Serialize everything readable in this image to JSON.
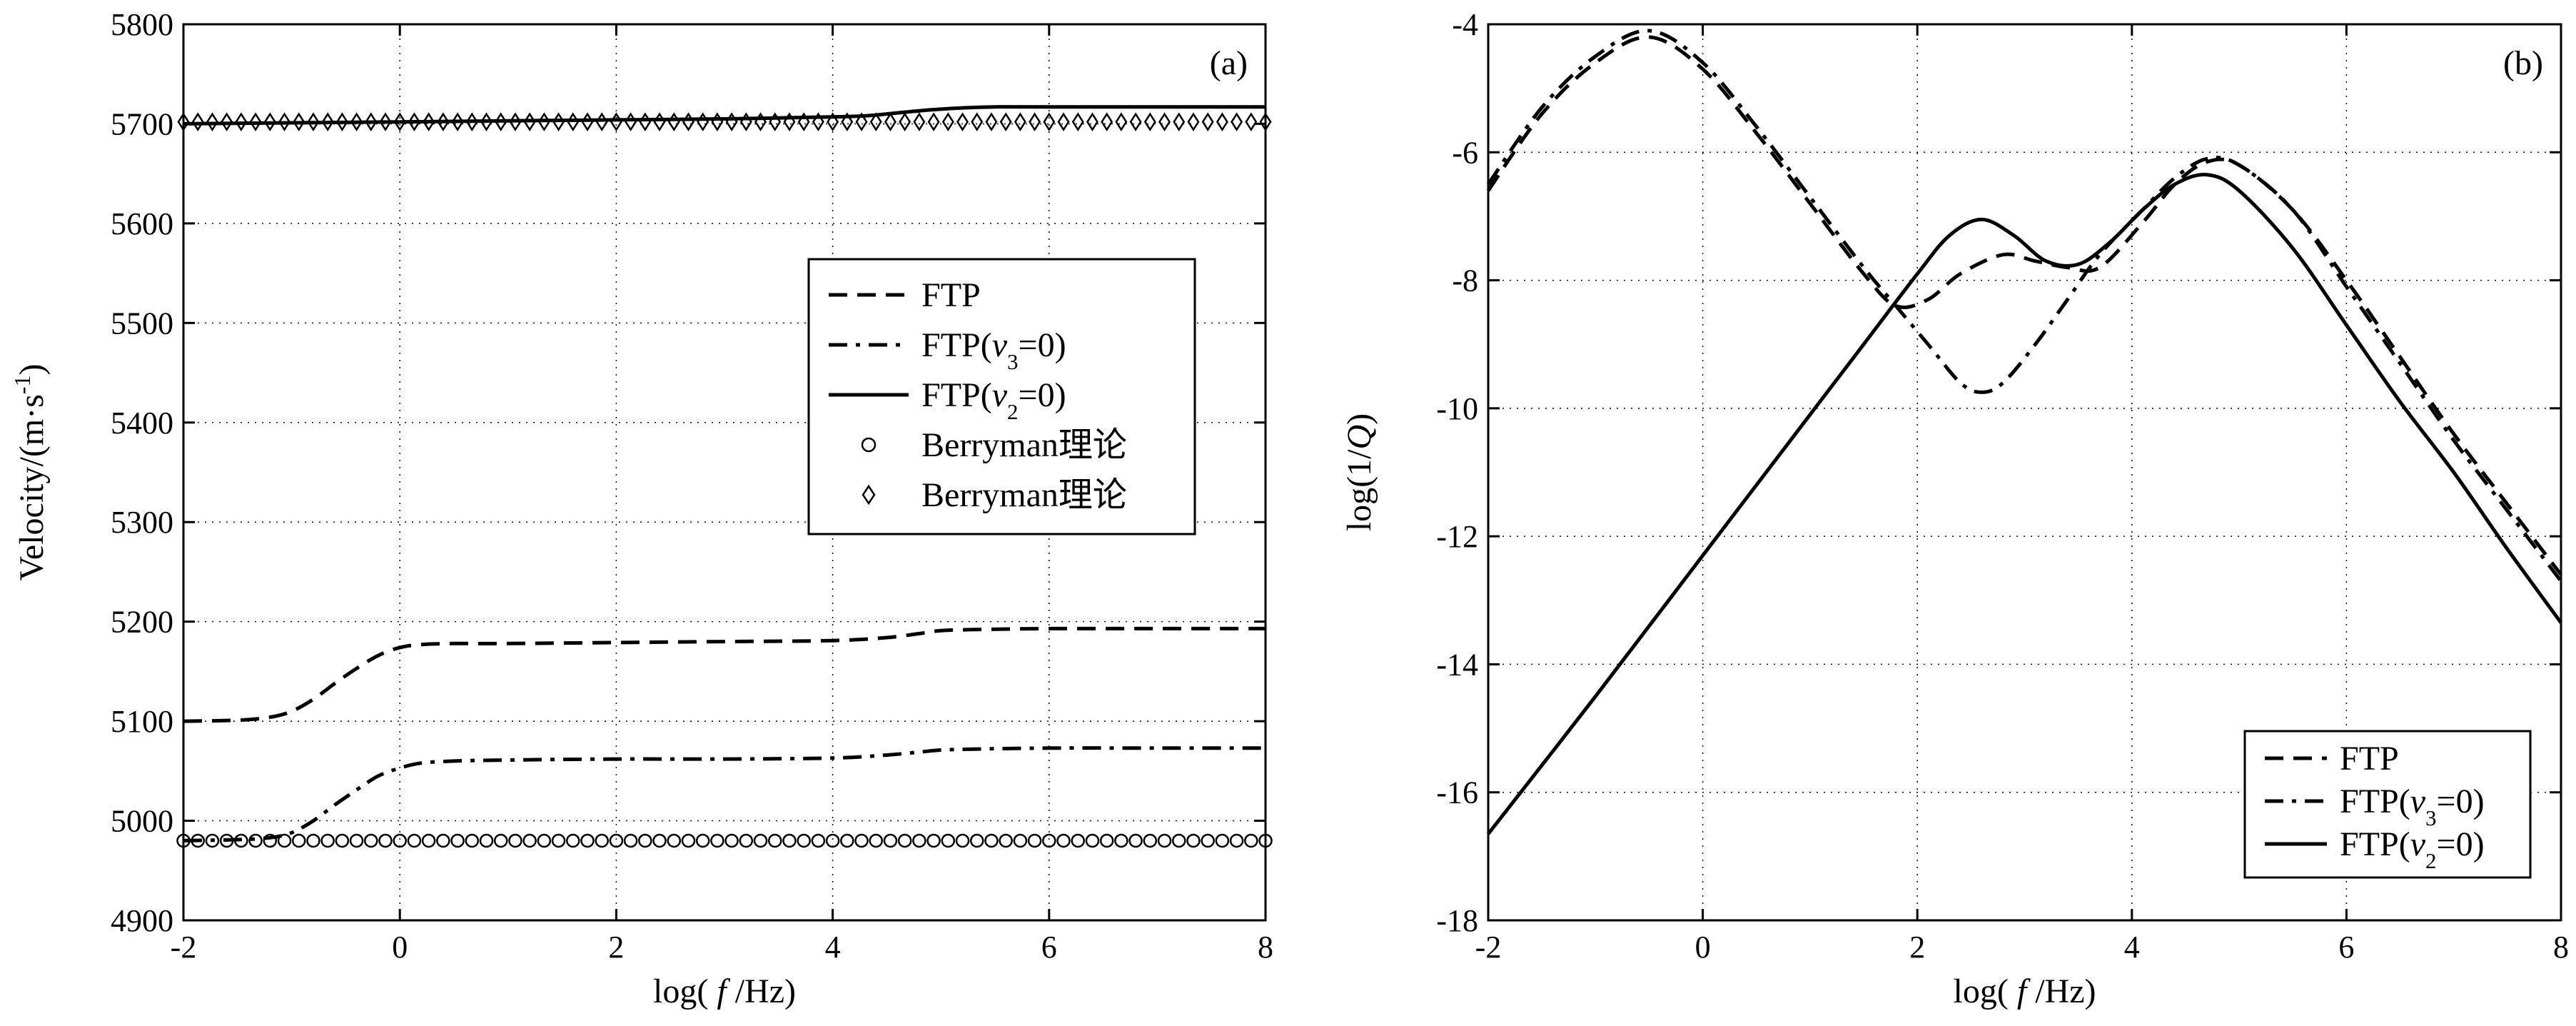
{
  "chart_data": [
    {
      "panel": "(a)",
      "type": "line",
      "title": "",
      "xlabel": "log( f /Hz)",
      "ylabel": "Velocity/(m·s⁻¹)",
      "xlim": [
        -2,
        8
      ],
      "ylim": [
        4900,
        5800
      ],
      "xticks": [
        -2,
        0,
        2,
        4,
        6,
        8
      ],
      "yticks": [
        4900,
        5000,
        5100,
        5200,
        5300,
        5400,
        5500,
        5600,
        5700,
        5800
      ],
      "grid": true,
      "legend_position": "center-right",
      "legend": [
        {
          "label": "FTP",
          "style": "dashed"
        },
        {
          "label": "FTP(v₃=0)",
          "style": "dashdot"
        },
        {
          "label": "FTP(v₂=0)",
          "style": "solid"
        },
        {
          "label": "Berryman理论",
          "style": "circle-markers"
        },
        {
          "label": "Berryman理论",
          "style": "diamond-markers"
        }
      ],
      "series": [
        {
          "name": "FTP",
          "style": "dashed",
          "x": [
            -2,
            -1.5,
            -1.2,
            -1.0,
            -0.8,
            -0.6,
            -0.4,
            -0.2,
            0,
            0.2,
            0.5,
            1,
            2,
            3,
            4,
            4.5,
            4.8,
            5,
            5.3,
            6,
            7,
            8
          ],
          "y": [
            5100,
            5101,
            5104,
            5110,
            5122,
            5138,
            5153,
            5166,
            5174,
            5177,
            5178,
            5178,
            5179,
            5180,
            5181,
            5184,
            5188,
            5191,
            5192,
            5193,
            5193,
            5193
          ]
        },
        {
          "name": "FTP(v₃=0)",
          "style": "dashdot",
          "x": [
            -2,
            -1.5,
            -1.2,
            -1.0,
            -0.8,
            -0.6,
            -0.4,
            -0.2,
            0,
            0.2,
            0.5,
            1,
            2,
            3,
            4,
            4.5,
            4.8,
            5,
            5.3,
            6,
            7,
            8
          ],
          "y": [
            4980,
            4981,
            4983,
            4988,
            5000,
            5016,
            5031,
            5045,
            5053,
            5058,
            5060,
            5061,
            5062,
            5062,
            5063,
            5066,
            5069,
            5071,
            5072,
            5073,
            5073,
            5073
          ]
        },
        {
          "name": "FTP(v₂=0)",
          "style": "solid",
          "x": [
            -2,
            -1,
            0,
            1,
            2,
            3,
            4,
            4.3,
            4.6,
            4.9,
            5.2,
            5.5,
            6,
            7,
            8
          ],
          "y": [
            5700,
            5701,
            5702,
            5703,
            5704,
            5705,
            5707,
            5708,
            5711,
            5714,
            5716,
            5717,
            5717,
            5717,
            5717
          ]
        },
        {
          "name": "Berryman理论",
          "style": "circle-markers",
          "x_range": [
            -2,
            8
          ],
          "points": 76,
          "y_constant": 4980
        },
        {
          "name": "Berryman理论",
          "style": "diamond-markers",
          "x_range": [
            -2,
            8
          ],
          "points": 76,
          "y_constant": 5702
        }
      ]
    },
    {
      "panel": "(b)",
      "type": "line",
      "title": "",
      "xlabel": "log( f /Hz)",
      "ylabel": "log(1/Q)",
      "xlim": [
        -2,
        8
      ],
      "ylim": [
        -18,
        -4
      ],
      "xticks": [
        -2,
        0,
        2,
        4,
        6,
        8
      ],
      "yticks": [
        -18,
        -16,
        -14,
        -12,
        -10,
        -8,
        -6,
        -4
      ],
      "grid": true,
      "legend_position": "bottom-right",
      "legend": [
        {
          "label": "FTP",
          "style": "dashed"
        },
        {
          "label": "FTP(v₃=0)",
          "style": "dashdot"
        },
        {
          "label": "FTP(v₂=0)",
          "style": "solid"
        }
      ],
      "series": [
        {
          "name": "FTP",
          "style": "dashed",
          "x": [
            -2,
            -1.5,
            -1,
            -0.5,
            0,
            0.5,
            1,
            1.5,
            1.8,
            2.1,
            2.4,
            2.8,
            3.1,
            3.4,
            3.7,
            4.1,
            4.4,
            4.7,
            5.0,
            5.5,
            6,
            6.5,
            7,
            7.5,
            8
          ],
          "y": [
            -6.6,
            -5.4,
            -4.6,
            -4.2,
            -4.7,
            -5.7,
            -6.8,
            -7.9,
            -8.4,
            -8.3,
            -7.9,
            -7.6,
            -7.7,
            -7.8,
            -7.8,
            -7.1,
            -6.5,
            -6.15,
            -6.2,
            -6.9,
            -8.0,
            -9.2,
            -10.4,
            -11.5,
            -12.6
          ]
        },
        {
          "name": "FTP(v₃=0)",
          "style": "dashdot",
          "x": [
            -2,
            -1.5,
            -1,
            -0.5,
            0,
            0.5,
            1,
            1.5,
            1.8,
            2.1,
            2.4,
            2.6,
            2.8,
            3.1,
            3.4,
            3.7,
            4.1,
            4.4,
            4.7,
            5.0,
            5.5,
            6,
            6.5,
            7,
            7.5,
            8
          ],
          "y": [
            -6.5,
            -5.3,
            -4.5,
            -4.1,
            -4.6,
            -5.6,
            -6.7,
            -7.8,
            -8.4,
            -9.0,
            -9.6,
            -9.75,
            -9.6,
            -9.0,
            -8.3,
            -7.6,
            -6.9,
            -6.4,
            -6.1,
            -6.2,
            -6.9,
            -8.1,
            -9.3,
            -10.5,
            -11.6,
            -12.7
          ]
        },
        {
          "name": "FTP(v₂=0)",
          "style": "solid",
          "x": [
            -2,
            -1,
            0,
            1,
            1.5,
            2,
            2.3,
            2.6,
            2.9,
            3.2,
            3.5,
            3.8,
            4.1,
            4.4,
            4.7,
            5.0,
            5.5,
            6,
            6.5,
            7,
            7.5,
            8
          ],
          "y": [
            -16.65,
            -14.5,
            -12.3,
            -10.1,
            -9.0,
            -7.9,
            -7.3,
            -7.05,
            -7.3,
            -7.7,
            -7.75,
            -7.4,
            -6.9,
            -6.5,
            -6.35,
            -6.6,
            -7.5,
            -8.7,
            -9.9,
            -11.0,
            -12.2,
            -13.35
          ]
        }
      ]
    }
  ]
}
